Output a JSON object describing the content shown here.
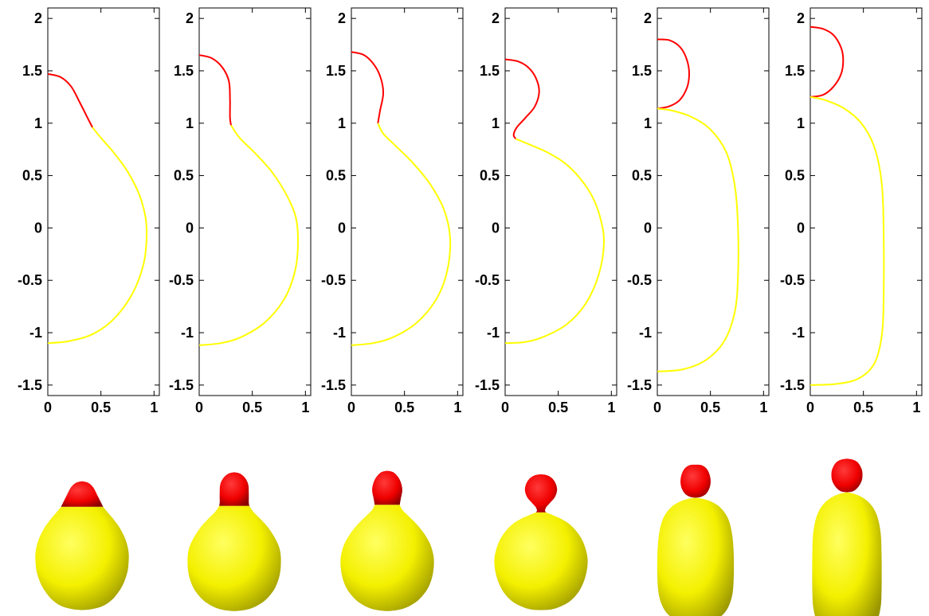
{
  "chart_data": [
    {
      "type": "line",
      "title": "",
      "xlabel": "",
      "ylabel": "",
      "xlim": [
        0,
        1.05
      ],
      "ylim": [
        -1.6,
        2.1
      ],
      "x_ticks": [
        "0",
        "0.5",
        "1"
      ],
      "y_ticks": [
        "-1.5",
        "-1",
        "-0.5",
        "0",
        "0.5",
        "1",
        "1.5",
        "2"
      ],
      "grid": false,
      "series": [
        {
          "color": "#ff0000",
          "points": [
            [
              0,
              1.47
            ],
            [
              0.12,
              1.44
            ],
            [
              0.22,
              1.35
            ],
            [
              0.3,
              1.2
            ],
            [
              0.37,
              1.06
            ],
            [
              0.42,
              0.96
            ]
          ]
        },
        {
          "color": "#ffff00",
          "points": [
            [
              0.42,
              0.96
            ],
            [
              0.5,
              0.86
            ],
            [
              0.62,
              0.72
            ],
            [
              0.75,
              0.54
            ],
            [
              0.86,
              0.32
            ],
            [
              0.92,
              0.1
            ],
            [
              0.93,
              -0.1
            ],
            [
              0.9,
              -0.35
            ],
            [
              0.8,
              -0.62
            ],
            [
              0.63,
              -0.86
            ],
            [
              0.43,
              -1.01
            ],
            [
              0.2,
              -1.08
            ],
            [
              0,
              -1.1
            ]
          ]
        }
      ]
    },
    {
      "type": "line",
      "title": "",
      "xlabel": "",
      "ylabel": "",
      "xlim": [
        0,
        1.05
      ],
      "ylim": [
        -1.6,
        2.1
      ],
      "x_ticks": [
        "0",
        "0.5",
        "1"
      ],
      "y_ticks": [
        "-1.5",
        "-1",
        "-0.5",
        "0",
        "0.5",
        "1",
        "1.5",
        "2"
      ],
      "grid": false,
      "series": [
        {
          "color": "#ff0000",
          "points": [
            [
              0,
              1.65
            ],
            [
              0.12,
              1.62
            ],
            [
              0.22,
              1.53
            ],
            [
              0.28,
              1.4
            ],
            [
              0.29,
              1.22
            ],
            [
              0.29,
              1.05
            ],
            [
              0.3,
              0.98
            ]
          ]
        },
        {
          "color": "#ffff00",
          "points": [
            [
              0.3,
              0.98
            ],
            [
              0.38,
              0.86
            ],
            [
              0.52,
              0.72
            ],
            [
              0.68,
              0.54
            ],
            [
              0.82,
              0.32
            ],
            [
              0.91,
              0.1
            ],
            [
              0.93,
              -0.15
            ],
            [
              0.9,
              -0.42
            ],
            [
              0.8,
              -0.68
            ],
            [
              0.62,
              -0.9
            ],
            [
              0.4,
              -1.04
            ],
            [
              0.2,
              -1.1
            ],
            [
              0,
              -1.12
            ]
          ]
        }
      ]
    },
    {
      "type": "line",
      "title": "",
      "xlabel": "",
      "ylabel": "",
      "xlim": [
        0,
        1.05
      ],
      "ylim": [
        -1.6,
        2.1
      ],
      "x_ticks": [
        "0",
        "0.5",
        "1"
      ],
      "y_ticks": [
        "-1.5",
        "-1",
        "-0.5",
        "0",
        "0.5",
        "1",
        "1.5",
        "2"
      ],
      "grid": false,
      "series": [
        {
          "color": "#ff0000",
          "points": [
            [
              0,
              1.68
            ],
            [
              0.12,
              1.65
            ],
            [
              0.22,
              1.55
            ],
            [
              0.28,
              1.42
            ],
            [
              0.3,
              1.28
            ],
            [
              0.27,
              1.12
            ],
            [
              0.25,
              1.0
            ]
          ]
        },
        {
          "color": "#ffff00",
          "points": [
            [
              0.25,
              1.0
            ],
            [
              0.3,
              0.9
            ],
            [
              0.42,
              0.78
            ],
            [
              0.58,
              0.62
            ],
            [
              0.74,
              0.42
            ],
            [
              0.87,
              0.18
            ],
            [
              0.93,
              -0.1
            ],
            [
              0.9,
              -0.42
            ],
            [
              0.8,
              -0.68
            ],
            [
              0.62,
              -0.9
            ],
            [
              0.4,
              -1.04
            ],
            [
              0.2,
              -1.1
            ],
            [
              0,
              -1.12
            ]
          ]
        }
      ]
    },
    {
      "type": "line",
      "title": "",
      "xlabel": "",
      "ylabel": "",
      "xlim": [
        0,
        1.05
      ],
      "ylim": [
        -1.6,
        2.1
      ],
      "x_ticks": [
        "0",
        "0.5",
        "1"
      ],
      "y_ticks": [
        "-1.5",
        "-1",
        "-0.5",
        "0",
        "0.5",
        "1",
        "1.5",
        "2"
      ],
      "grid": false,
      "series": [
        {
          "color": "#ff0000",
          "points": [
            [
              0,
              1.61
            ],
            [
              0.12,
              1.59
            ],
            [
              0.22,
              1.53
            ],
            [
              0.29,
              1.43
            ],
            [
              0.32,
              1.3
            ],
            [
              0.28,
              1.16
            ],
            [
              0.19,
              1.05
            ],
            [
              0.11,
              0.96
            ],
            [
              0.08,
              0.89
            ],
            [
              0.1,
              0.85
            ]
          ]
        },
        {
          "color": "#ffff00",
          "points": [
            [
              0.1,
              0.85
            ],
            [
              0.22,
              0.8
            ],
            [
              0.4,
              0.72
            ],
            [
              0.56,
              0.62
            ],
            [
              0.7,
              0.48
            ],
            [
              0.82,
              0.3
            ],
            [
              0.9,
              0.08
            ],
            [
              0.93,
              -0.15
            ],
            [
              0.88,
              -0.45
            ],
            [
              0.76,
              -0.72
            ],
            [
              0.58,
              -0.92
            ],
            [
              0.36,
              -1.04
            ],
            [
              0.18,
              -1.09
            ],
            [
              0,
              -1.1
            ]
          ]
        }
      ]
    },
    {
      "type": "line",
      "title": "",
      "xlabel": "",
      "ylabel": "",
      "xlim": [
        0,
        1.05
      ],
      "ylim": [
        -1.6,
        2.1
      ],
      "x_ticks": [
        "0",
        "0.5",
        "1"
      ],
      "y_ticks": [
        "-1.5",
        "-1",
        "-0.5",
        "0",
        "0.5",
        "1",
        "1.5",
        "2"
      ],
      "grid": false,
      "series": [
        {
          "color": "#ff0000",
          "points": [
            [
              0,
              1.8
            ],
            [
              0.12,
              1.79
            ],
            [
              0.22,
              1.72
            ],
            [
              0.28,
              1.6
            ],
            [
              0.3,
              1.47
            ],
            [
              0.28,
              1.34
            ],
            [
              0.21,
              1.22
            ],
            [
              0.11,
              1.16
            ],
            [
              0,
              1.14
            ]
          ]
        },
        {
          "color": "#ffff00",
          "points": [
            [
              0,
              1.14
            ],
            [
              0.14,
              1.12
            ],
            [
              0.32,
              1.06
            ],
            [
              0.5,
              0.94
            ],
            [
              0.65,
              0.72
            ],
            [
              0.73,
              0.4
            ],
            [
              0.76,
              0.0
            ],
            [
              0.76,
              -0.45
            ],
            [
              0.73,
              -0.8
            ],
            [
              0.63,
              -1.08
            ],
            [
              0.46,
              -1.26
            ],
            [
              0.24,
              -1.35
            ],
            [
              0,
              -1.37
            ]
          ]
        }
      ]
    },
    {
      "type": "line",
      "title": "",
      "xlabel": "",
      "ylabel": "",
      "xlim": [
        0,
        1.05
      ],
      "ylim": [
        -1.6,
        2.1
      ],
      "x_ticks": [
        "0",
        "0.5",
        "1"
      ],
      "y_ticks": [
        "-1.5",
        "-1",
        "-0.5",
        "0",
        "0.5",
        "1",
        "1.5",
        "2"
      ],
      "grid": false,
      "series": [
        {
          "color": "#ff0000",
          "points": [
            [
              0,
              1.92
            ],
            [
              0.12,
              1.9
            ],
            [
              0.22,
              1.84
            ],
            [
              0.29,
              1.72
            ],
            [
              0.31,
              1.6
            ],
            [
              0.29,
              1.47
            ],
            [
              0.22,
              1.35
            ],
            [
              0.12,
              1.27
            ],
            [
              0,
              1.25
            ]
          ]
        },
        {
          "color": "#ffff00",
          "points": [
            [
              0,
              1.25
            ],
            [
              0.14,
              1.22
            ],
            [
              0.32,
              1.14
            ],
            [
              0.48,
              1.0
            ],
            [
              0.6,
              0.78
            ],
            [
              0.67,
              0.45
            ],
            [
              0.69,
              0.0
            ],
            [
              0.69,
              -0.7
            ],
            [
              0.67,
              -1.05
            ],
            [
              0.6,
              -1.3
            ],
            [
              0.45,
              -1.44
            ],
            [
              0.24,
              -1.49
            ],
            [
              0,
              -1.5
            ]
          ]
        }
      ]
    }
  ],
  "renders": [
    {
      "color_top": "#ff0000",
      "color_body": "#ffff00"
    },
    {
      "color_top": "#ff0000",
      "color_body": "#ffff00"
    },
    {
      "color_top": "#ff0000",
      "color_body": "#ffff00"
    },
    {
      "color_top": "#ff0000",
      "color_body": "#ffff00"
    },
    {
      "color_top": "#ff0000",
      "color_body": "#ffff00"
    },
    {
      "color_top": "#ff0000",
      "color_body": "#ffff00"
    }
  ]
}
